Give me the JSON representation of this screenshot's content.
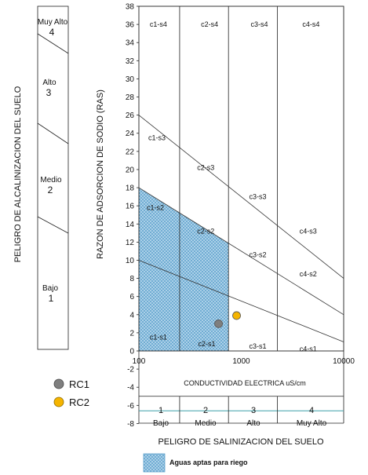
{
  "chart_data": {
    "type": "scatter",
    "title": "",
    "xlabel": "CONDUCTIVIDAD ELECTRICA uS/cm",
    "ylabel": "RAZON DE ADSORCION DE SODIO (RAS)",
    "xscale": "log",
    "xlim": [
      100,
      10000
    ],
    "ylim": [
      -8,
      38
    ],
    "x_ticks": [
      100,
      1000,
      10000
    ],
    "x_tick_labels": [
      "100",
      "1000",
      "10000"
    ],
    "y_ticks": [
      -8,
      -6,
      -4,
      -2,
      0,
      2,
      4,
      6,
      8,
      10,
      12,
      14,
      16,
      18,
      20,
      22,
      24,
      26,
      28,
      30,
      32,
      34,
      36,
      38
    ],
    "series": [
      {
        "name": "RC1",
        "color": "#7f7f7f",
        "points": [
          [
            600,
            3
          ]
        ]
      },
      {
        "name": "RC2",
        "color": "#f5b400",
        "points": [
          [
            900,
            3.9
          ]
        ]
      }
    ],
    "salinity_boundaries": [
      250,
      750,
      2250
    ],
    "sodium_lines": [
      {
        "points": [
          [
            100,
            10
          ],
          [
            10000,
            1
          ]
        ]
      },
      {
        "points": [
          [
            100,
            18
          ],
          [
            10000,
            4
          ]
        ]
      },
      {
        "points": [
          [
            100,
            26
          ],
          [
            10000,
            8
          ]
        ]
      }
    ],
    "zone_labels": [
      {
        "text": "c1-s4",
        "x": 155,
        "y": 36
      },
      {
        "text": "c2-s4",
        "x": 490,
        "y": 36
      },
      {
        "text": "c3-s4",
        "x": 1500,
        "y": 36
      },
      {
        "text": "c4-s4",
        "x": 4800,
        "y": 36
      },
      {
        "text": "c1-s3",
        "x": 150,
        "y": 23.5
      },
      {
        "text": "c2-s3",
        "x": 450,
        "y": 20.2
      },
      {
        "text": "c3-s3",
        "x": 1450,
        "y": 17
      },
      {
        "text": "c4-s3",
        "x": 4500,
        "y": 13.2
      },
      {
        "text": "c1-s2",
        "x": 145,
        "y": 15.8
      },
      {
        "text": "c2-s2",
        "x": 450,
        "y": 13.2
      },
      {
        "text": "c3-s2",
        "x": 1450,
        "y": 10.6
      },
      {
        "text": "c4-s2",
        "x": 4500,
        "y": 8.5
      },
      {
        "text": "c1-s1",
        "x": 155,
        "y": 1.5
      },
      {
        "text": "c2-s1",
        "x": 460,
        "y": 0.8
      },
      {
        "text": "c3-s1",
        "x": 1450,
        "y": 0.5
      },
      {
        "text": "c4-s1",
        "x": 4500,
        "y": 0.2
      }
    ],
    "grid": false,
    "legend": "bottom-left"
  },
  "legend": {
    "rc1": "RC1",
    "rc2": "RC2",
    "aptas": "Aguas aptas para riego"
  },
  "colors": {
    "rc1": "#7f7f7f",
    "rc2": "#f5b400",
    "hatch_fill": "#b7d7ec",
    "hatch_line": "#5a9fcb",
    "salinity_line": "#3fa0a8"
  },
  "alkalinity": {
    "title": "PELIGRO DE ALCALINIZACION DEL SUELO",
    "levels": [
      {
        "name": "Muy Alto",
        "num": "4"
      },
      {
        "name": "Alto",
        "num": "3"
      },
      {
        "name": "Medio",
        "num": "2"
      },
      {
        "name": "Bajo",
        "num": "1"
      }
    ]
  },
  "salinity": {
    "title": "PELIGRO DE SALINIZACION DEL SUELO",
    "levels": [
      {
        "num": "1",
        "name": "Bajo"
      },
      {
        "num": "2",
        "name": "Medio"
      },
      {
        "num": "3",
        "name": "Alto"
      },
      {
        "num": "4",
        "name": "Muy Alto"
      }
    ]
  }
}
